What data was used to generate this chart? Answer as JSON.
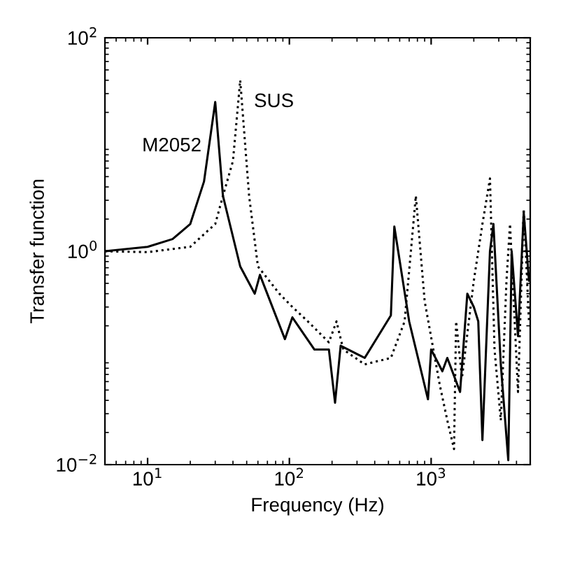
{
  "chart_data": {
    "type": "line",
    "xlabel": "Frequency (Hz)",
    "ylabel": "Transfer function",
    "log": "xy",
    "grid": false,
    "legend": false,
    "marker": "none",
    "xlim": [
      5,
      5000
    ],
    "ylim": [
      0.01,
      100
    ],
    "xticks": [
      {
        "value": 10,
        "label": "10$^{1}$"
      },
      {
        "value": 100,
        "label": "10$^{2}$"
      },
      {
        "value": 1000,
        "label": "10$^{3}$"
      }
    ],
    "yticks": [
      {
        "value": 0.01,
        "label": "10$^{−2}$"
      },
      {
        "value": 1,
        "label": "10$^{0}$"
      },
      {
        "value": 100,
        "label": "10$^{2}$"
      }
    ],
    "series": [
      {
        "name": "M2052",
        "color": "#000000",
        "line_style": "solid",
        "x": [
          5,
          10,
          15,
          20,
          25,
          30,
          34,
          45,
          57,
          62,
          93,
          105,
          150,
          190,
          210,
          230,
          340,
          520,
          550,
          700,
          950,
          1000,
          1200,
          1300,
          1600,
          1800,
          2000,
          2150,
          2300,
          2600,
          2750,
          3100,
          3500,
          3700,
          4100,
          4500,
          4900
        ],
        "values": [
          1.0,
          1.1,
          1.3,
          1.8,
          4.5,
          25,
          3.3,
          0.72,
          0.4,
          0.6,
          0.15,
          0.24,
          0.12,
          0.12,
          0.038,
          0.13,
          0.1,
          0.25,
          1.7,
          0.22,
          0.041,
          0.12,
          0.075,
          0.1,
          0.048,
          0.4,
          0.3,
          0.22,
          0.017,
          1.0,
          1.8,
          0.087,
          0.011,
          1.0,
          0.16,
          2.3,
          0.53
        ]
      },
      {
        "name": "SUS",
        "color": "#000000",
        "line_style": "dotted",
        "x": [
          5,
          10,
          20,
          30,
          34,
          40,
          45,
          52,
          60,
          85,
          105,
          135,
          190,
          215,
          240,
          340,
          520,
          650,
          780,
          900,
          1150,
          1300,
          1450,
          1500,
          1650,
          2000,
          2300,
          2600,
          2800,
          3100,
          3400,
          3600,
          4100,
          4500,
          4900
        ],
        "values": [
          1.0,
          0.98,
          1.1,
          1.8,
          3.3,
          7,
          40,
          3.3,
          0.72,
          0.4,
          0.3,
          0.22,
          0.14,
          0.22,
          0.12,
          0.087,
          0.1,
          0.22,
          3.3,
          0.34,
          0.056,
          0.026,
          0.014,
          0.22,
          0.065,
          0.53,
          1.8,
          4.8,
          0.12,
          0.026,
          0.53,
          1.8,
          0.048,
          2.5,
          0.22
        ]
      }
    ]
  }
}
